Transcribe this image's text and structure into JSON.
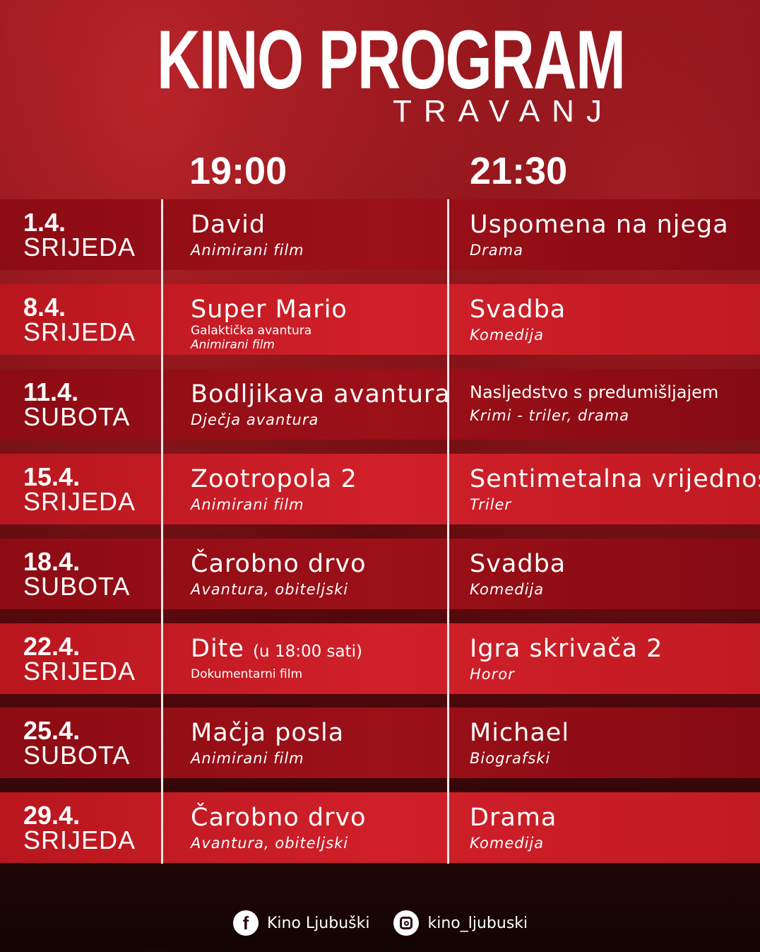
{
  "header": {
    "title": "KINO PROGRAM",
    "month": "TRAVANJ"
  },
  "times": [
    "19:00",
    "21:30"
  ],
  "rows": [
    {
      "date": "1.4.",
      "day": "SRIJEDA",
      "a": {
        "title": "David",
        "genre": "Animirani film"
      },
      "b": {
        "title": "Uspomena na njega",
        "genre": "Drama"
      }
    },
    {
      "date": "8.4.",
      "day": "SRIJEDA",
      "a": {
        "title": "Super Mario",
        "subtitle": "Galaktička avantura",
        "genre": "Animirani film"
      },
      "b": {
        "title": "Svadba",
        "genre": "Komedija"
      }
    },
    {
      "date": "11.4.",
      "day": "SUBOTA",
      "a": {
        "title": "Bodljikava avantura",
        "genre": "Dječja avantura"
      },
      "b": {
        "title": "Nasljedstvo s predumišljajem",
        "genre": "Krimi - triler, drama"
      }
    },
    {
      "date": "15.4.",
      "day": "SRIJEDA",
      "a": {
        "title": "Zootropola 2",
        "genre": "Animirani film"
      },
      "b": {
        "title": "Sentimetalna vrijednost",
        "genre": "Triler"
      }
    },
    {
      "date": "18.4.",
      "day": "SUBOTA",
      "a": {
        "title": "Čarobno drvo",
        "genre": "Avantura, obiteljski"
      },
      "b": {
        "title": "Svadba",
        "genre": "Komedija"
      }
    },
    {
      "date": "22.4.",
      "day": "SRIJEDA",
      "a": {
        "title": "Dite",
        "note": "(u 18:00 sati)",
        "genre": "Dokumentarni film"
      },
      "b": {
        "title": "Igra skrivača 2",
        "genre": "Horor"
      }
    },
    {
      "date": "25.4.",
      "day": "SUBOTA",
      "a": {
        "title": "Mačja posla",
        "genre": "Animirani film"
      },
      "b": {
        "title": "Michael",
        "genre": "Biografski"
      }
    },
    {
      "date": "29.4.",
      "day": "SRIJEDA",
      "a": {
        "title": "Čarobno drvo",
        "genre": "Avantura, obiteljski"
      },
      "b": {
        "title": "Drama",
        "genre": "Komedija"
      }
    }
  ],
  "footer": {
    "facebook": "Kino Ljubuški",
    "instagram": "kino_ljubuski",
    "facebook_icon": "facebook-icon",
    "instagram_icon": "instagram-icon"
  },
  "colors": {
    "dark_row": "#9c1018",
    "light_row": "#d0202a",
    "divider": "#f0e8e8"
  }
}
